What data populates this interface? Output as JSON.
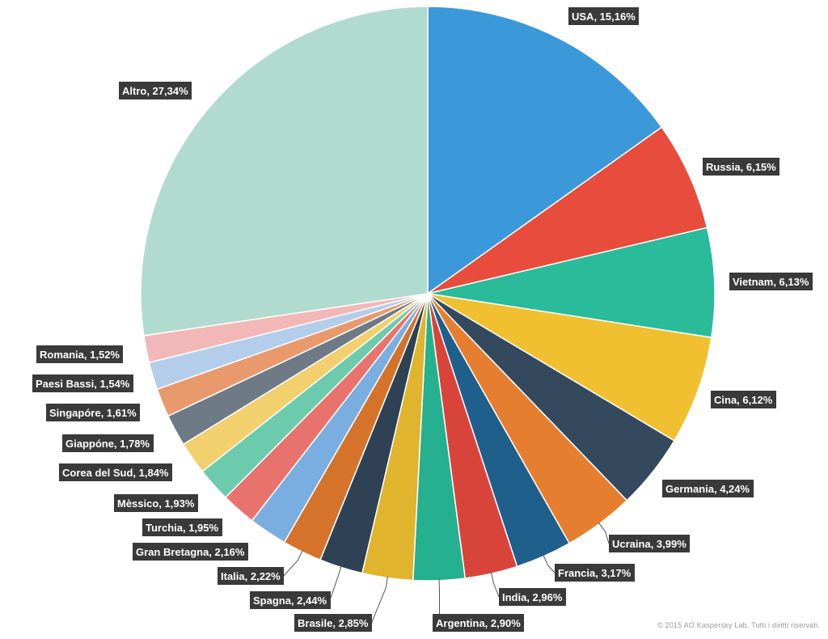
{
  "chart_data": {
    "type": "pie",
    "slices": [
      {
        "name": "USA",
        "label": "USA, 15,16%",
        "value": 15.16,
        "color": "#3b99d9"
      },
      {
        "name": "Russia",
        "label": "Russia, 6,15%",
        "value": 6.15,
        "color": "#e74c3c"
      },
      {
        "name": "Vietnam",
        "label": "Vietnam, 6,13%",
        "value": 6.13,
        "color": "#2abb9b"
      },
      {
        "name": "Cina",
        "label": "Cina, 6,12%",
        "value": 6.12,
        "color": "#f0c030"
      },
      {
        "name": "Germania",
        "label": "Germania, 4,24%",
        "value": 4.24,
        "color": "#34495e"
      },
      {
        "name": "Ucraina",
        "label": "Ucraina, 3,99%",
        "value": 3.99,
        "color": "#e67e30"
      },
      {
        "name": "Francia",
        "label": "Francia, 3,17%",
        "value": 3.17,
        "color": "#1f5f8b"
      },
      {
        "name": "India",
        "label": "India, 2,96%",
        "value": 2.96,
        "color": "#d9443a"
      },
      {
        "name": "Argentina",
        "label": "Argentina, 2,90%",
        "value": 2.9,
        "color": "#25b08f"
      },
      {
        "name": "Brasile",
        "label": "Brasile, 2,85%",
        "value": 2.85,
        "color": "#e0b42c"
      },
      {
        "name": "Spagna",
        "label": "Spagna, 2,44%",
        "value": 2.44,
        "color": "#2e4155"
      },
      {
        "name": "Italia",
        "label": "Italia, 2,22%",
        "value": 2.22,
        "color": "#d5732b"
      },
      {
        "name": "Gran Bretagna",
        "label": "Gran Bretagna, 2,16%",
        "value": 2.16,
        "color": "#7aaee0"
      },
      {
        "name": "Turchia",
        "label": "Turchia, 1,95%",
        "value": 1.95,
        "color": "#e8736c"
      },
      {
        "name": "Mèssico",
        "label": "Mèssico, 1,93%",
        "value": 1.93,
        "color": "#6ccbad"
      },
      {
        "name": "Corea del Sud",
        "label": "Corea del Sud, 1,84%",
        "value": 1.84,
        "color": "#f2d06e"
      },
      {
        "name": "Giappóne",
        "label": "Giappóne, 1,78%",
        "value": 1.78,
        "color": "#6e7a85"
      },
      {
        "name": "Singapóre",
        "label": "Singapóre, 1,61%",
        "value": 1.61,
        "color": "#e99a6d"
      },
      {
        "name": "Paesi Bassi",
        "label": "Paesi Bassi, 1,54%",
        "value": 1.54,
        "color": "#b4cdea"
      },
      {
        "name": "Romania",
        "label": "Romania, 1,52%",
        "value": 1.52,
        "color": "#f2b8b8"
      },
      {
        "name": "Altro",
        "label": "Altro, 27,34%",
        "value": 27.34,
        "color": "#b2dbcf"
      }
    ],
    "label_box_color": "#3a3a3a",
    "label_text_color": "#ffffff"
  },
  "footer": {
    "copyright": "© 2015 AO Kaspersky Lab. Tutti i diritti riservati."
  }
}
